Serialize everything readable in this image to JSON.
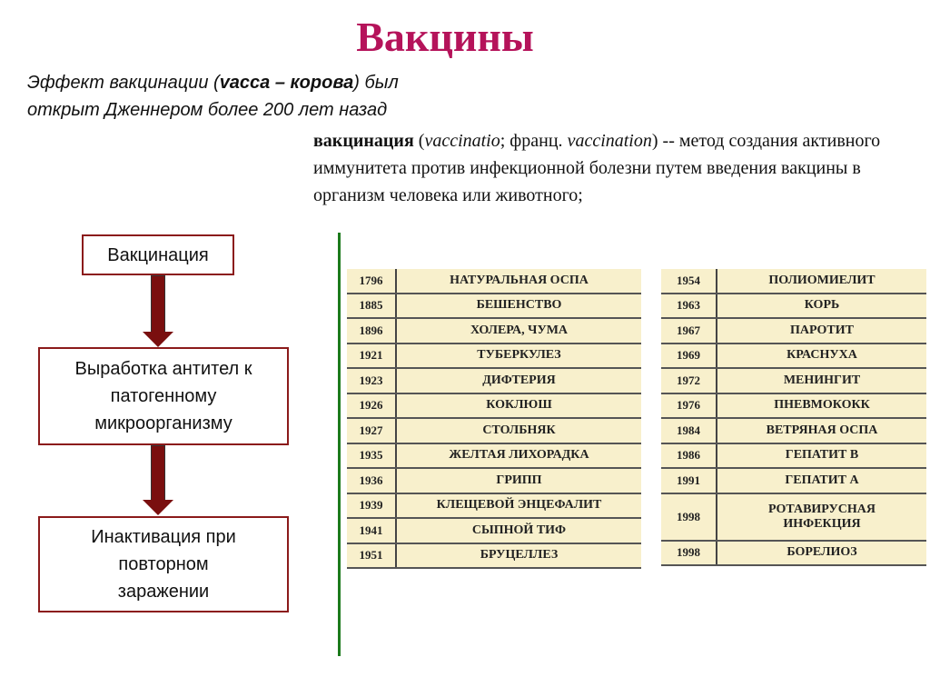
{
  "title": "Вакцины",
  "intro": [
    "Эффект вакцинации (",
    "vacca – корова",
    ") был",
    "открыт Дженнером более 200 лет назад"
  ],
  "definition": {
    "term": "вакцинация",
    "rest1": " (",
    "latin": "vaccinatio",
    "rest2": "; франц. ",
    "french": "vaccination",
    "rest3": ") -- метод создания активного иммунитета против инфекционной болезни путем введения вакцины в организм человека или животного;"
  },
  "flow": [
    "Вакцинация",
    "Выработка антител к патогенному микроорганизму",
    "Инактивация при повторном заражении"
  ],
  "colors": {
    "title": "#b5135a",
    "box_border": "#8b1a1a",
    "arrow": "#7a0f0f",
    "divider": "#1c7a1c",
    "table_bg": "#f8f0cc"
  },
  "table_left": [
    [
      "1796",
      "НАТУРАЛЬНАЯ ОСПА"
    ],
    [
      "1885",
      "БЕШЕНСТВО"
    ],
    [
      "1896",
      "ХОЛЕРА, ЧУМА"
    ],
    [
      "1921",
      "ТУБЕРКУЛЕЗ"
    ],
    [
      "1923",
      "ДИФТЕРИЯ"
    ],
    [
      "1926",
      "КОКЛЮШ"
    ],
    [
      "1927",
      "СТОЛБНЯК"
    ],
    [
      "1935",
      "ЖЕЛТАЯ ЛИХОРАДКА"
    ],
    [
      "1936",
      "ГРИПП"
    ],
    [
      "1939",
      "КЛЕЩЕВОЙ ЭНЦЕФАЛИТ"
    ],
    [
      "1941",
      "СЫПНОЙ ТИФ"
    ],
    [
      "1951",
      "БРУЦЕЛЛЕЗ"
    ]
  ],
  "table_right": [
    [
      "1954",
      "ПОЛИОМИЕЛИТ"
    ],
    [
      "1963",
      "КОРЬ"
    ],
    [
      "1967",
      "ПАРОТИТ"
    ],
    [
      "1969",
      "КРАСНУХА"
    ],
    [
      "1972",
      "МЕНИНГИТ"
    ],
    [
      "1976",
      "ПНЕВМОКОКК"
    ],
    [
      "1984",
      "ВЕТРЯНАЯ ОСПА"
    ],
    [
      "1986",
      "ГЕПАТИТ В"
    ],
    [
      "1991",
      "ГЕПАТИТ А"
    ],
    [
      "1998",
      "РОТАВИРУСНАЯ ИНФЕКЦИЯ"
    ],
    [
      "1998",
      "БОРЕЛИОЗ"
    ]
  ]
}
